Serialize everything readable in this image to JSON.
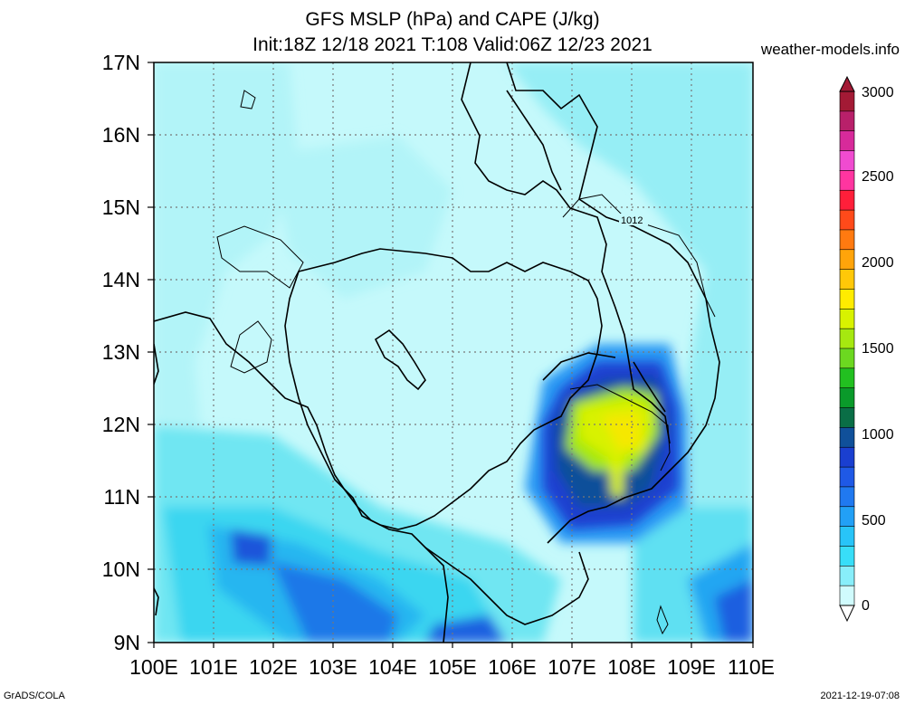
{
  "header": {
    "title_line1": "GFS MSLP (hPa) and CAPE (J/kg)",
    "title_line2": "Init:18Z 12/18 2021 T:108 Valid:06Z 12/23 2021",
    "site": "weather-models.info"
  },
  "footer": {
    "left": "GrADS/COLA",
    "right": "2021-12-19-07:08"
  },
  "map": {
    "lat_labels": [
      "17N",
      "16N",
      "15N",
      "14N",
      "13N",
      "12N",
      "11N",
      "10N",
      "9N"
    ],
    "lon_labels": [
      "100E",
      "101E",
      "102E",
      "103E",
      "104E",
      "105E",
      "106E",
      "107E",
      "108E",
      "109E",
      "110E"
    ],
    "contour_label": "1012"
  },
  "colorbar": {
    "labels": [
      "3000",
      "2500",
      "2000",
      "1500",
      "1000",
      "500",
      "0"
    ],
    "colors": [
      "#a31a35",
      "#b8206a",
      "#d72a9a",
      "#f04bd0",
      "#ff35a0",
      "#ff1f3a",
      "#ff4a1a",
      "#ff7a10",
      "#ffa40a",
      "#ffc808",
      "#ffec00",
      "#d8f200",
      "#a6e810",
      "#6cd820",
      "#22c020",
      "#0a9a2a",
      "#0a6e46",
      "#10509a",
      "#1a3fd0",
      "#1f59e6",
      "#2079f0",
      "#22a0f6",
      "#28c4f8",
      "#38def8",
      "#88eefa",
      "#d0fbfd"
    ]
  }
}
